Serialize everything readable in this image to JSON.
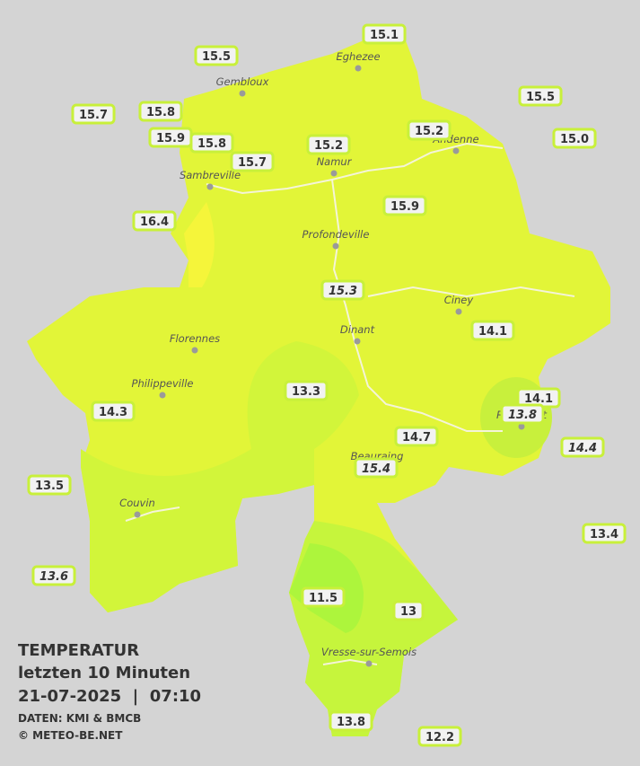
{
  "title": {
    "line1": "TEMPERATUR",
    "line2": "letzten 10 Minuten",
    "line3": "21-07-2025  |  07:10",
    "source": "DATEN: KMI & BMCB",
    "copyright": "© METEO-BE.NET"
  },
  "cities": [
    "Eghezee",
    "Gembloux",
    "Andenne",
    "Namur",
    "Sambreville",
    "Profondeville",
    "Ciney",
    "Dinant",
    "Florennes",
    "Philippeville",
    "Rochefort",
    "Beauraing",
    "Couvin",
    "Vresse-sur-Semois"
  ],
  "stations": [
    15.1,
    15.5,
    15.5,
    15.7,
    15.8,
    15.9,
    15.8,
    15.2,
    {
      "value": 15,
      "label": "15.0"
    },
    15.2,
    15.7,
    15.9,
    16.4,
    15.3,
    14.1,
    13.3,
    14.1,
    13.8,
    14.3,
    14.7,
    14.4,
    15.4,
    13.5,
    13.4,
    13.6,
    11.5,
    13,
    13.8,
    12.2
  ]
}
